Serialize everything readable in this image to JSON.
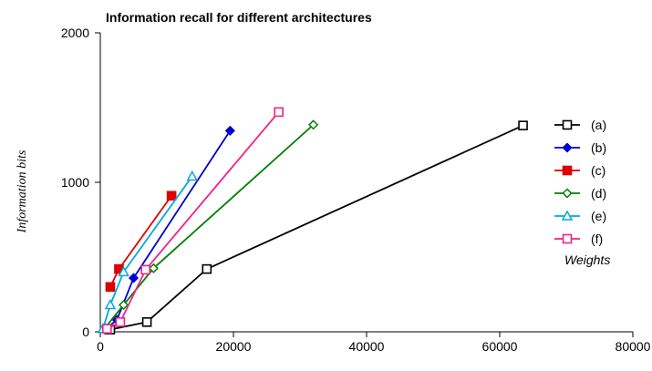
{
  "chart_data": {
    "type": "line",
    "title": "Information recall for different architectures",
    "xlabel": "Weights",
    "ylabel": "Information bits",
    "xlim": [
      0,
      80000
    ],
    "ylim": [
      0,
      2000
    ],
    "xticks": [
      0,
      20000,
      40000,
      60000,
      80000
    ],
    "yticks": [
      0,
      1000,
      2000
    ],
    "grid": false,
    "legend_position": "right",
    "series": [
      {
        "name": "(a)",
        "color": "#000000",
        "marker": "open-square",
        "x": [
          1500,
          7000,
          16000,
          63500
        ],
        "y": [
          15,
          65,
          420,
          1380
        ]
      },
      {
        "name": "(b)",
        "color": "#0000cc",
        "marker": "filled-diamond",
        "x": [
          700,
          2500,
          5000,
          19500
        ],
        "y": [
          15,
          80,
          360,
          1345
        ]
      },
      {
        "name": "(c)",
        "color": "#dd0000",
        "marker": "filled-square",
        "x": [
          1500,
          2800,
          10700
        ],
        "y": [
          300,
          420,
          910
        ]
      },
      {
        "name": "(d)",
        "color": "#008000",
        "marker": "open-diamond",
        "x": [
          600,
          3500,
          8000,
          32000
        ],
        "y": [
          20,
          180,
          425,
          1385
        ]
      },
      {
        "name": "(e)",
        "color": "#00aadd",
        "marker": "open-triangle",
        "x": [
          400,
          1500,
          3500,
          13800
        ],
        "y": [
          20,
          180,
          400,
          1040
        ]
      },
      {
        "name": "(f)",
        "color": "#ee2288",
        "marker": "open-square",
        "x": [
          1000,
          3000,
          6800,
          26800
        ],
        "y": [
          20,
          65,
          415,
          1470
        ]
      }
    ]
  }
}
